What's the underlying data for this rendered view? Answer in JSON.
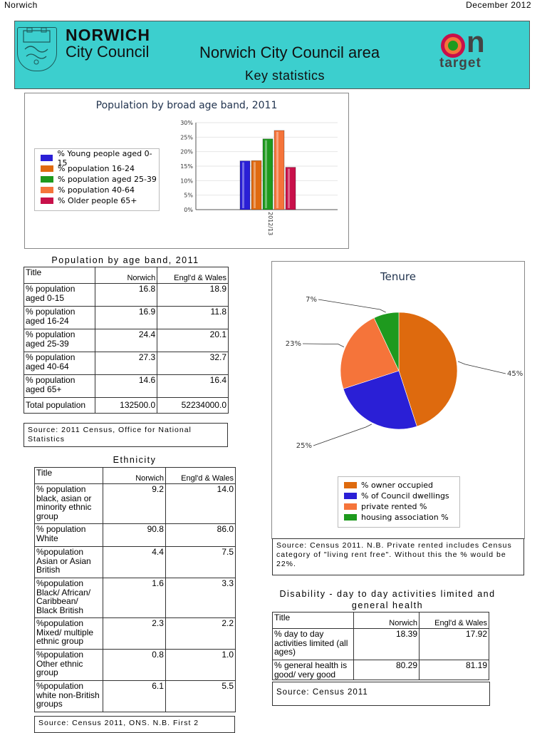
{
  "header": {
    "left": "Norwich",
    "right": "December 2012"
  },
  "banner": {
    "org_line1": "NORWICH",
    "org_line2": "City Council",
    "title": "Norwich City Council area",
    "subtitle": "Key statistics",
    "logo_on": "on",
    "logo_target": "target",
    "colors": {
      "banner_bg": "#3ccfce"
    }
  },
  "age_chart": {
    "title": "Population by broad age band, 2011",
    "legend": [
      "% Young people aged 0-15",
      "% population 16-24",
      "% population aged 25-39",
      "% population 40-64",
      "% Older people 65+"
    ],
    "yticks": [
      "30%",
      "25%",
      "20%",
      "15%",
      "10%",
      "5%",
      "0%"
    ],
    "xlabel": "2012/13"
  },
  "chart_data": [
    {
      "type": "bar",
      "title": "Population by broad age band, 2011",
      "categories": [
        "2012/13"
      ],
      "series": [
        {
          "name": "% Young people aged 0-15",
          "values": [
            16.8
          ],
          "color": "#2a1fd6"
        },
        {
          "name": "% population 16-24",
          "values": [
            16.9
          ],
          "color": "#e06a10"
        },
        {
          "name": "% population aged 25-39",
          "values": [
            24.4
          ],
          "color": "#1e9a1e"
        },
        {
          "name": "% population 40-64",
          "values": [
            27.3
          ],
          "color": "#f5743a"
        },
        {
          "name": "% Older people 65+",
          "values": [
            14.6
          ],
          "color": "#c8104a"
        }
      ],
      "ylim": [
        0,
        30
      ],
      "legend_position": "left"
    },
    {
      "type": "pie",
      "title": "Tenure",
      "slices": [
        {
          "name": "% owner occupied",
          "value": 45,
          "label": "45%",
          "color": "#de6a0e"
        },
        {
          "name": "% of Council dwellings",
          "value": 25,
          "label": "25%",
          "color": "#2a1fd6"
        },
        {
          "name": "private rented %",
          "value": 23,
          "label": "23%",
          "color": "#f5743a"
        },
        {
          "name": "housing association %",
          "value": 7,
          "label": "7%",
          "color": "#1e9a1e"
        }
      ],
      "legend_position": "bottom"
    }
  ],
  "age_table": {
    "caption": "Population by age band, 2011",
    "headers": [
      "Title",
      "Norwich",
      "Engl'd & Wales"
    ],
    "rows": [
      {
        "label": "% population aged 0-15",
        "norwich": "16.8",
        "ew": "18.9"
      },
      {
        "label": "% population aged 16-24",
        "norwich": "16.9",
        "ew": "11.8"
      },
      {
        "label": "% population aged 25-39",
        "norwich": "24.4",
        "ew": "20.1"
      },
      {
        "label": "% population aged 40-64",
        "norwich": "27.3",
        "ew": "32.7"
      },
      {
        "label": "% population aged 65+",
        "norwich": "14.6",
        "ew": "16.4"
      },
      {
        "label": "Total population",
        "norwich": "132500.0",
        "ew": "52234000.0"
      }
    ],
    "source": "Source: 2011 Census, Office for National Statistics"
  },
  "ethnicity": {
    "caption": "Ethnicity",
    "headers": [
      "Title",
      "Norwich",
      "Engl'd & Wales"
    ],
    "rows": [
      {
        "label": "% population black, asian or minority ethnic group",
        "norwich": "9.2",
        "ew": "14.0"
      },
      {
        "label": "% population White",
        "norwich": "90.8",
        "ew": "86.0"
      },
      {
        "label": "%population Asian or Asian British",
        "norwich": "4.4",
        "ew": "7.5"
      },
      {
        "label": "%population Black/ African/ Caribbean/ Black British",
        "norwich": "1.6",
        "ew": "3.3"
      },
      {
        "label": "%population Mixed/ multiple ethnic group",
        "norwich": "2.3",
        "ew": "2.2"
      },
      {
        "label": "%population Other ethnic group",
        "norwich": "0.8",
        "ew": "1.0"
      },
      {
        "label": "%population white non-British groups",
        "norwich": "6.1",
        "ew": "5.5"
      }
    ],
    "source": "Source: Census 2011, ONS. N.B. First 2"
  },
  "tenure": {
    "title": "Tenure",
    "source": "Source: Census 2011. N.B. Private rented includes Census category of \"living rent free\". Without this the % would be 22%."
  },
  "disability": {
    "caption_line1": "Disability - day to day activities limited and",
    "caption_line2": "general health",
    "headers": [
      "Title",
      "Norwich",
      "Engl'd & Wales"
    ],
    "rows": [
      {
        "label": "% day to day activities limited (all ages)",
        "norwich": "18.39",
        "ew": "17.92"
      },
      {
        "label": "% general health is good/ very good",
        "norwich": "80.29",
        "ew": "81.19"
      }
    ],
    "source": "Source: Census 2011"
  }
}
